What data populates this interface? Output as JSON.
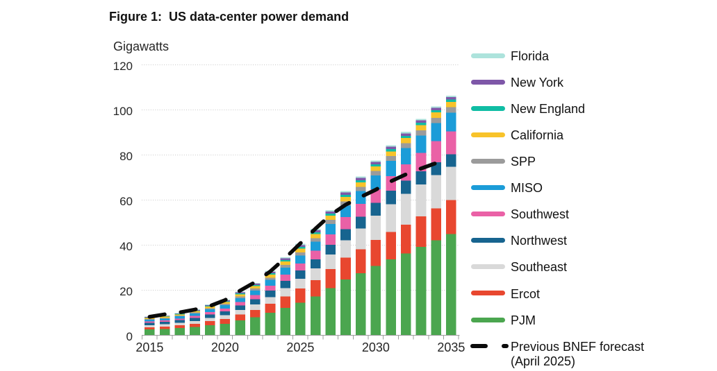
{
  "figure": {
    "title": "Figure 1:  US data-center power demand",
    "unit_label": "Gigawatts"
  },
  "chart_data": {
    "type": "bar",
    "subtype": "stacked-bar-with-line",
    "title": "Figure 1:  US data-center power demand",
    "ylabel": "Gigawatts",
    "xlabel": "",
    "ylim": [
      0,
      120
    ],
    "yticks": [
      0,
      20,
      40,
      60,
      80,
      100,
      120
    ],
    "xtick_labels": [
      "2015",
      "2020",
      "2025",
      "2030",
      "2035"
    ],
    "grid": "horizontal-dotted",
    "legend_position": "right",
    "categories": [
      2015,
      2016,
      2017,
      2018,
      2019,
      2020,
      2021,
      2022,
      2023,
      2024,
      2025,
      2026,
      2027,
      2028,
      2029,
      2030,
      2031,
      2032,
      2033,
      2034,
      2035
    ],
    "series": [
      {
        "name": "PJM",
        "color": "#4ba64f",
        "values": [
          2.6,
          2.8,
          3.2,
          3.7,
          4.5,
          5.1,
          6.6,
          8.0,
          10.0,
          12.2,
          14.5,
          17.3,
          20.9,
          24.7,
          27.5,
          30.8,
          33.7,
          36.3,
          39.3,
          42.1,
          45.0
        ]
      },
      {
        "name": "Ercot",
        "color": "#e8472f",
        "values": [
          1.0,
          1.1,
          1.25,
          1.45,
          1.75,
          2.1,
          2.6,
          3.2,
          4.0,
          5.0,
          6.2,
          7.1,
          8.5,
          9.7,
          10.7,
          11.5,
          12.2,
          12.8,
          13.4,
          14.2,
          15.0
        ]
      },
      {
        "name": "Southeast",
        "color": "#d9d9d9",
        "values": [
          0.9,
          0.95,
          1.05,
          1.2,
          1.4,
          1.7,
          2.0,
          2.45,
          3.0,
          3.7,
          4.4,
          5.3,
          6.4,
          7.8,
          9.2,
          10.8,
          12.3,
          13.6,
          14.2,
          14.8,
          14.8
        ]
      },
      {
        "name": "Northwest",
        "color": "#17648f",
        "values": [
          1.05,
          1.1,
          1.2,
          1.35,
          1.55,
          1.7,
          2.0,
          2.35,
          2.8,
          3.25,
          3.6,
          4.0,
          4.4,
          4.9,
          5.2,
          5.6,
          5.9,
          5.9,
          5.9,
          5.7,
          5.5
        ]
      },
      {
        "name": "Southwest",
        "color": "#ea61a6",
        "values": [
          0.6,
          0.65,
          0.75,
          0.9,
          1.05,
          1.25,
          1.55,
          1.8,
          2.25,
          2.8,
          3.2,
          3.8,
          4.6,
          5.3,
          5.7,
          6.0,
          6.5,
          7.3,
          8.2,
          9.3,
          10.1
        ]
      },
      {
        "name": "MISO",
        "color": "#1b9cd8",
        "values": [
          0.8,
          0.85,
          0.95,
          1.1,
          1.3,
          1.5,
          1.75,
          2.05,
          2.5,
          3.0,
          3.5,
          4.0,
          4.6,
          5.2,
          5.7,
          6.2,
          6.8,
          7.2,
          7.65,
          8.0,
          8.3
        ]
      },
      {
        "name": "SPP",
        "color": "#9b9b9b",
        "values": [
          0.3,
          0.32,
          0.36,
          0.42,
          0.5,
          0.6,
          0.7,
          0.85,
          1.05,
          1.25,
          1.4,
          1.6,
          1.8,
          1.85,
          1.9,
          1.95,
          2.1,
          2.2,
          2.3,
          2.4,
          2.5
        ]
      },
      {
        "name": "California",
        "color": "#f8c32a",
        "values": [
          0.45,
          0.47,
          0.52,
          0.6,
          0.7,
          0.8,
          0.95,
          1.1,
          1.3,
          1.5,
          1.7,
          1.85,
          1.9,
          2.0,
          2.0,
          2.0,
          2.1,
          2.2,
          2.3,
          2.35,
          2.4
        ]
      },
      {
        "name": "New England",
        "color": "#10bda4",
        "values": [
          0.2,
          0.21,
          0.23,
          0.26,
          0.3,
          0.35,
          0.42,
          0.5,
          0.58,
          0.66,
          0.74,
          0.8,
          0.85,
          0.9,
          0.92,
          0.95,
          0.97,
          1.0,
          1.0,
          1.0,
          1.0
        ]
      },
      {
        "name": "New York",
        "color": "#7e57a8",
        "values": [
          0.22,
          0.23,
          0.26,
          0.3,
          0.35,
          0.4,
          0.48,
          0.56,
          0.65,
          0.74,
          0.82,
          0.9,
          0.95,
          1.0,
          1.02,
          1.05,
          1.07,
          1.1,
          1.1,
          1.1,
          1.1
        ]
      },
      {
        "name": "Florida",
        "color": "#ade3dc",
        "values": [
          0.15,
          0.16,
          0.18,
          0.2,
          0.24,
          0.28,
          0.33,
          0.38,
          0.44,
          0.5,
          0.55,
          0.58,
          0.6,
          0.62,
          0.63,
          0.64,
          0.65,
          0.65,
          0.65,
          0.65,
          0.65
        ]
      }
    ],
    "line": {
      "name": "Previous BNEF forecast (April 2025)",
      "color": "#0b0b0b",
      "style": "dashed",
      "x": [
        2015,
        2016,
        2017,
        2018,
        2019,
        2020,
        2021,
        2022,
        2023,
        2024,
        2025,
        2026,
        2027,
        2028,
        2029,
        2030,
        2031,
        2032,
        2033,
        2034
      ],
      "values": [
        8.2,
        9.3,
        10.2,
        11.4,
        13.0,
        15.6,
        19.8,
        23.6,
        28.3,
        34.3,
        40.8,
        47.3,
        53.4,
        57.9,
        61.4,
        64.6,
        68.3,
        71.4,
        74.0,
        76.4
      ]
    }
  },
  "legend": {
    "items": [
      {
        "label": "Florida",
        "color": "#ade3dc"
      },
      {
        "label": "New York",
        "color": "#7e57a8"
      },
      {
        "label": "New England",
        "color": "#10bda4"
      },
      {
        "label": "California",
        "color": "#f8c32a"
      },
      {
        "label": "SPP",
        "color": "#9b9b9b"
      },
      {
        "label": "MISO",
        "color": "#1b9cd8"
      },
      {
        "label": "Southwest",
        "color": "#ea61a6"
      },
      {
        "label": "Northwest",
        "color": "#17648f"
      },
      {
        "label": "Southeast",
        "color": "#d9d9d9"
      },
      {
        "label": "Ercot",
        "color": "#e8472f"
      },
      {
        "label": "PJM",
        "color": "#4ba64f"
      }
    ],
    "forecast": {
      "label_line1": "Previous BNEF forecast",
      "label_line2": "(April 2025)",
      "color": "#0b0b0b"
    }
  },
  "axes": {
    "ytick_labels": [
      "120",
      "100",
      "80",
      "60",
      "40",
      "20",
      "0"
    ],
    "grid_color": "#c8c8c8",
    "axis_color": "#9c9c9c",
    "label_color": "#262626"
  }
}
